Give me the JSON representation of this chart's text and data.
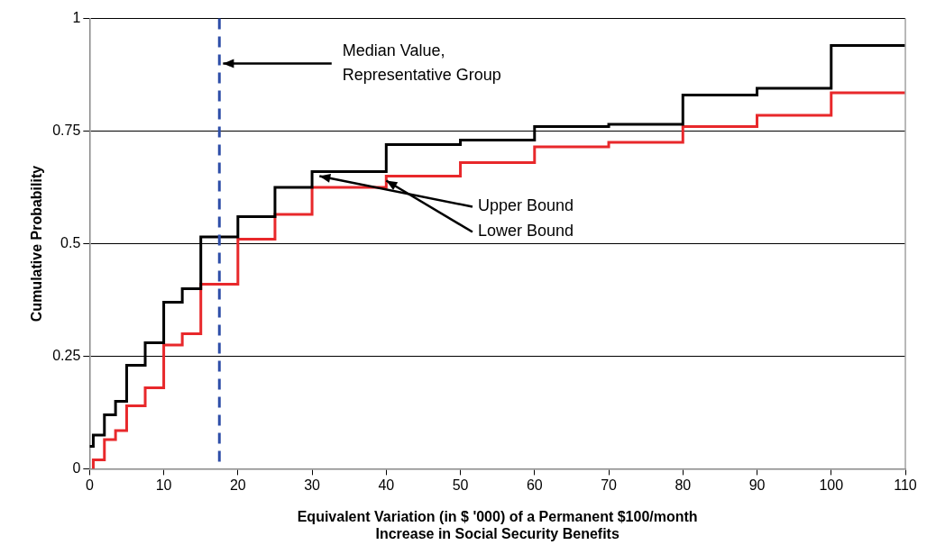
{
  "chart_data": {
    "type": "step",
    "xlabel": [
      "Equivalent Variation (in $ '000) of a Permanent $100/month",
      "Increase in Social Security Benefits"
    ],
    "ylabel": "Cumulative Probability",
    "series": [
      {
        "color": "#000000",
        "x": [
          0,
          0.5,
          2,
          3.5,
          5,
          7.5,
          10,
          12.5,
          15,
          20,
          25,
          30,
          40,
          50,
          60,
          70,
          80,
          90,
          100,
          110
        ],
        "values": [
          0.05,
          0.075,
          0.12,
          0.15,
          0.23,
          0.28,
          0.37,
          0.4,
          0.515,
          0.56,
          0.625,
          0.66,
          0.72,
          0.73,
          0.76,
          0.765,
          0.83,
          0.845,
          0.94,
          0.94
        ]
      },
      {
        "color": "#e8282b",
        "x": [
          0.5,
          0.5,
          2,
          3.5,
          5,
          7.5,
          10,
          12.5,
          15,
          20,
          25,
          30,
          40,
          50,
          60,
          70,
          80,
          90,
          100,
          110
        ],
        "values": [
          0,
          0.02,
          0.065,
          0.085,
          0.14,
          0.18,
          0.275,
          0.3,
          0.41,
          0.51,
          0.565,
          0.625,
          0.65,
          0.68,
          0.715,
          0.725,
          0.76,
          0.785,
          0.835,
          0.835
        ]
      }
    ],
    "xlim": [
      0,
      110
    ],
    "xticks": [
      0,
      10,
      20,
      30,
      40,
      50,
      60,
      70,
      80,
      90,
      100,
      110
    ],
    "ylim": [
      0,
      1
    ],
    "yticks": [
      0,
      0.25,
      0.5,
      0.75,
      1
    ],
    "grid": "y",
    "legend": false,
    "ref_lines": [
      {
        "axis": "x",
        "value": 17.5,
        "color": "#2e4ea8",
        "line_style": "dashed"
      }
    ],
    "annotations": [
      {
        "text": "Median Value, Representative Group",
        "x": 18,
        "y": 0.9
      },
      {
        "text": "Upper Bound",
        "x": 31,
        "y": 0.65
      },
      {
        "text": "Lower Bound",
        "x": 40,
        "y": 0.64
      }
    ]
  }
}
